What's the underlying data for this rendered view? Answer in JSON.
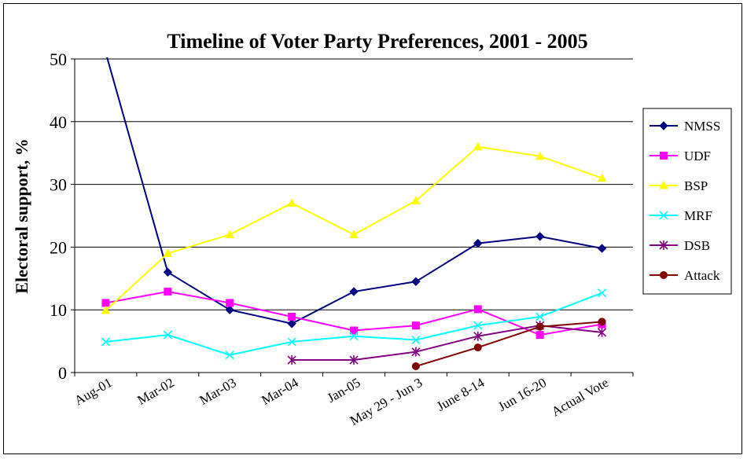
{
  "chart_data": {
    "type": "line",
    "title": "Timeline of Voter Party Preferences, 2001 - 2005",
    "xlabel": "",
    "ylabel": "Electoral support, %",
    "ylim": [
      0,
      50
    ],
    "yticks": [
      0,
      10,
      20,
      30,
      40,
      50
    ],
    "grid": true,
    "legend_position": "right",
    "categories": [
      "Aug-01",
      "Mar-02",
      "Mar-03",
      "Mar-04",
      "Jan-05",
      "May 29 - Jun 3",
      "June 8-14",
      "Jun 16-20",
      "Actual Vote"
    ],
    "series": [
      {
        "name": "NMSS",
        "color": "#000080",
        "marker": "diamond",
        "values": [
          51,
          16,
          10,
          7.8,
          12.9,
          14.5,
          20.6,
          21.7,
          19.8
        ]
      },
      {
        "name": "UDF",
        "color": "#ff00ff",
        "marker": "square",
        "values": [
          11.1,
          12.9,
          11.1,
          8.9,
          6.7,
          7.5,
          10.1,
          6.0,
          7.7
        ]
      },
      {
        "name": "BSP",
        "color": "#ffff00",
        "marker": "triangle",
        "values": [
          9.9,
          19,
          22,
          27,
          22,
          27.4,
          36,
          34.5,
          31
        ]
      },
      {
        "name": "MRF",
        "color": "#00ffff",
        "marker": "x",
        "values": [
          4.9,
          6.0,
          2.8,
          4.9,
          5.8,
          5.2,
          7.5,
          8.9,
          12.7
        ]
      },
      {
        "name": "DSB",
        "color": "#800080",
        "marker": "star",
        "values": [
          null,
          null,
          null,
          2.0,
          2.0,
          3.3,
          5.8,
          7.5,
          6.4
        ]
      },
      {
        "name": "Attack",
        "color": "#800000",
        "marker": "circle",
        "values": [
          null,
          null,
          null,
          null,
          null,
          1.0,
          4.0,
          7.3,
          8.1
        ]
      }
    ]
  }
}
